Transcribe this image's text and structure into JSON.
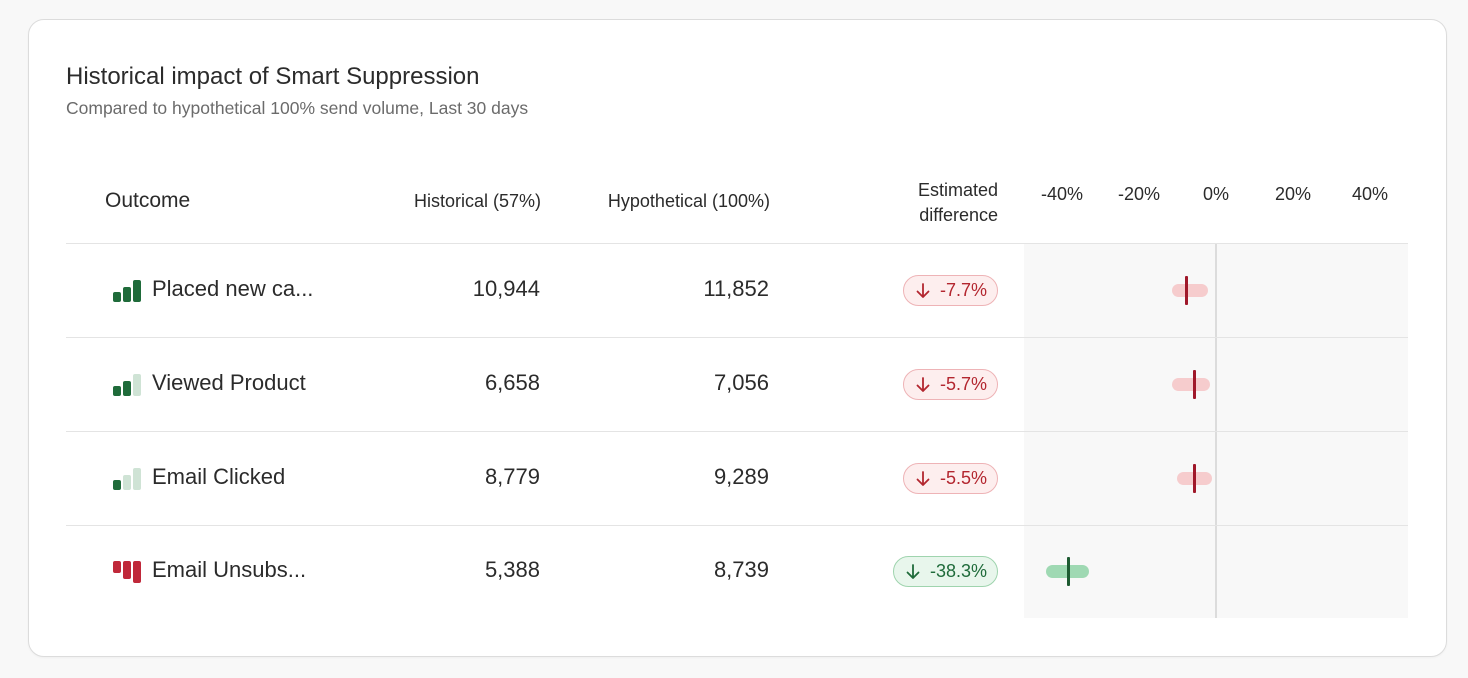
{
  "header": {
    "title": "Historical impact of Smart Suppression",
    "subtitle": "Compared to hypothetical 100% send volume, Last 30 days"
  },
  "columns": {
    "outcome": "Outcome",
    "historical": "Historical (57%)",
    "hypothetical": "Hypothetical (100%)",
    "difference_line1": "Estimated",
    "difference_line2": "difference"
  },
  "axis": {
    "ticks": [
      "-40%",
      "-20%",
      "0%",
      "20%",
      "40%"
    ],
    "range_percent": [
      -40,
      40
    ]
  },
  "rows": [
    {
      "name": "Placed new ca...",
      "historical": "10,944",
      "hypothetical": "11,852",
      "difference": "-7.7%",
      "direction": "down",
      "sentiment": "negative",
      "signal_strength": 3,
      "signal_color": "green",
      "estimate_percent": -7.7,
      "interval_percent": [
        -11.4,
        -2.2
      ]
    },
    {
      "name": "Viewed Product",
      "historical": "6,658",
      "hypothetical": "7,056",
      "difference": "-5.7%",
      "direction": "down",
      "sentiment": "negative",
      "signal_strength": 2,
      "signal_color": "green",
      "estimate_percent": -5.7,
      "interval_percent": [
        -11.4,
        -1.6
      ]
    },
    {
      "name": "Email Clicked",
      "historical": "8,779",
      "hypothetical": "9,289",
      "difference": "-5.5%",
      "direction": "down",
      "sentiment": "negative",
      "signal_strength": 1,
      "signal_color": "green",
      "estimate_percent": -5.5,
      "interval_percent": [
        -10.1,
        -1.0
      ]
    },
    {
      "name": "Email Unsubs...",
      "historical": "5,388",
      "hypothetical": "8,739",
      "difference": "-38.3%",
      "direction": "down",
      "sentiment": "positive",
      "signal_strength": 3,
      "signal_color": "red",
      "estimate_percent": -38.3,
      "interval_percent": [
        -44.2,
        -33.0
      ]
    }
  ],
  "colors": {
    "negative_text": "#b3262f",
    "negative_fill": "#fdeeee",
    "negative_mark": "#a0182a",
    "positive_text": "#1f6b3a",
    "positive_fill": "#e8f6ec",
    "positive_mark": "#1d5a31",
    "bar_green_active": "#1f6b3a",
    "bar_green_inactive": "#cfe3d5",
    "bar_red_active": "#c0283a",
    "bar_red_inactive": "#f2c4c8"
  },
  "icons": {
    "direction_down": "arrow-down-icon",
    "signal": "signal-strength-icon"
  }
}
